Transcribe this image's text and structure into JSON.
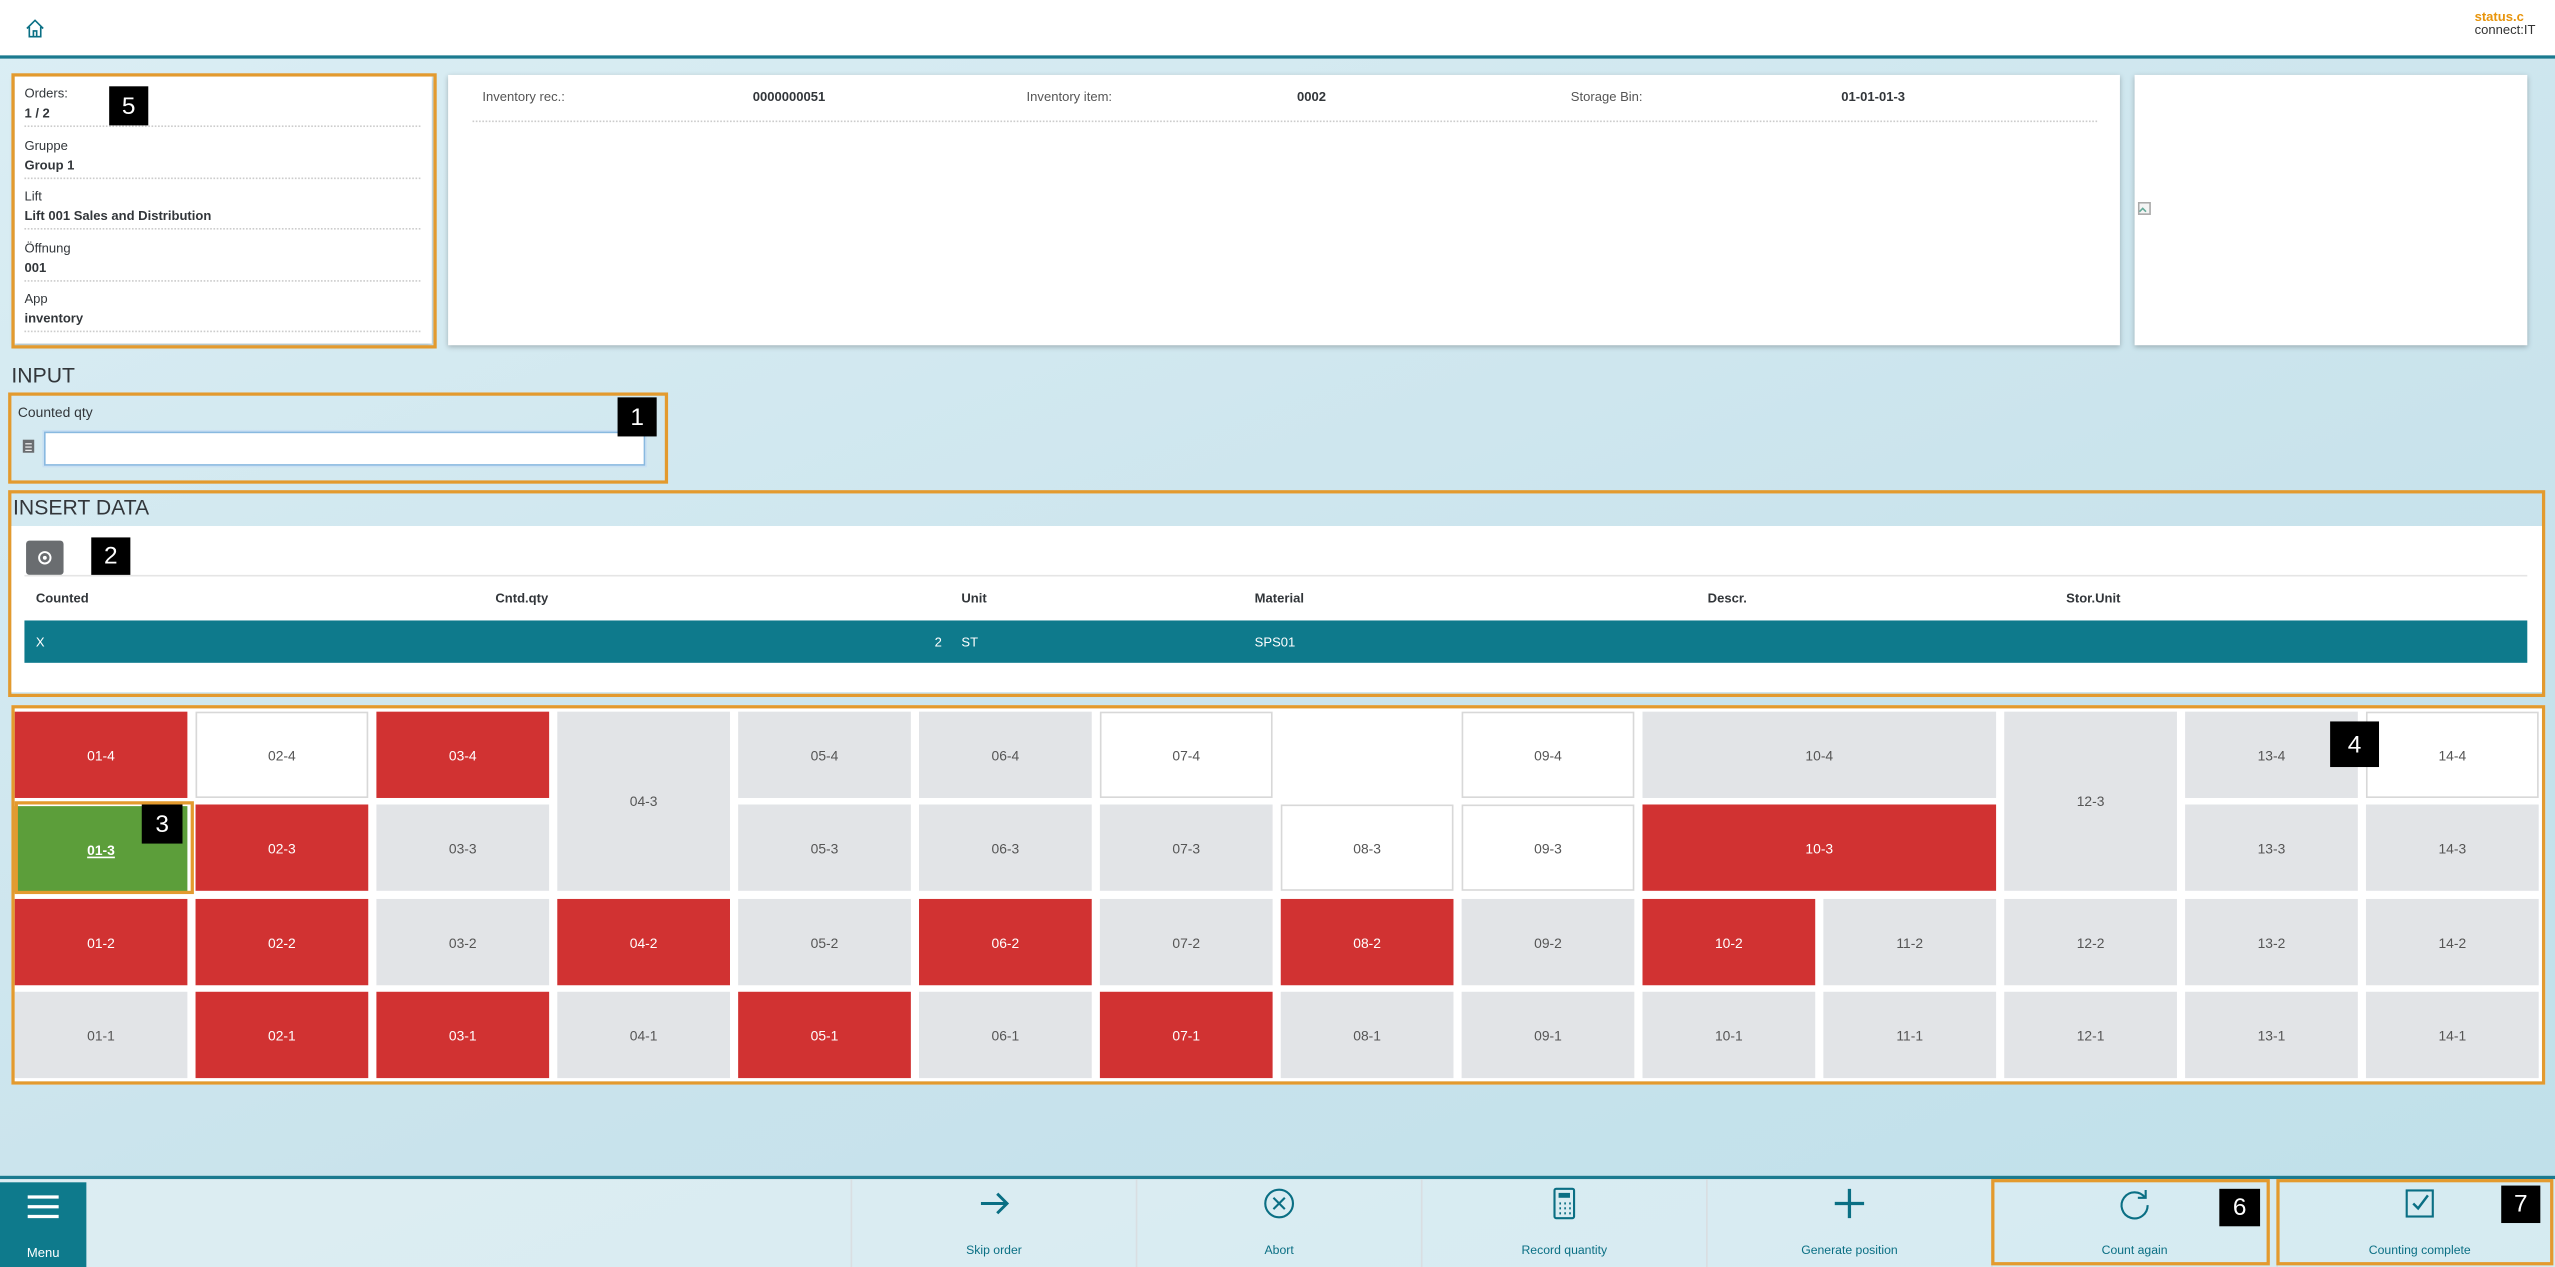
{
  "header": {
    "logo_top": "status.c",
    "logo_bottom": "connect:IT"
  },
  "info": {
    "fields": [
      {
        "label": "Orders:",
        "value": "1 / 2"
      },
      {
        "label": "Gruppe",
        "value": "Group 1"
      },
      {
        "label": "Lift",
        "value": "Lift 001 Sales and Distribution"
      },
      {
        "label": "Öffnung",
        "value": "001"
      },
      {
        "label": "App",
        "value": "inventory"
      }
    ]
  },
  "document": {
    "fields": [
      {
        "label": "Inventory rec.:",
        "value": "0000000051"
      },
      {
        "label": "Inventory item:",
        "value": "0002"
      },
      {
        "label": "Storage Bin:",
        "value": "01-01-01-3"
      }
    ]
  },
  "input": {
    "section_title": "INPUT",
    "field_label": "Counted qty"
  },
  "insert_data": {
    "section_title": "INSERT DATA",
    "table": {
      "columns": [
        "Counted",
        "Cntd.qty",
        "Unit",
        "Material",
        "Descr.",
        "Stor.Unit"
      ],
      "rows": [
        [
          "X",
          2,
          "ST",
          "SPS01",
          null,
          null
        ]
      ]
    }
  },
  "bin_grid": {
    "cells": [
      {
        "label": "01-4",
        "color": "#d13232"
      },
      {
        "label": "02-4",
        "color": "#ffffff"
      },
      {
        "label": "03-4",
        "color": "#d13232"
      },
      {
        "label": "04-3",
        "color": "#e2e4e7"
      },
      {
        "label": "05-4",
        "color": "#e2e4e7"
      },
      {
        "label": "06-4",
        "color": "#e2e4e7"
      },
      {
        "label": "07-4",
        "color": "#ffffff"
      },
      {
        "label": "09-4",
        "color": "#ffffff"
      },
      {
        "label": "10-4",
        "color": "#e2e4e7"
      },
      {
        "label": "12-3",
        "color": "#e2e4e7"
      },
      {
        "label": "13-4",
        "color": "#e2e4e7"
      },
      {
        "label": "14-4",
        "color": "#ffffff"
      },
      {
        "label": "01-3",
        "color": "#5c9e3a",
        "selected": true
      },
      {
        "label": "02-3",
        "color": "#d13232"
      },
      {
        "label": "03-3",
        "color": "#e2e4e7"
      },
      {
        "label": "05-3",
        "color": "#e2e4e7"
      },
      {
        "label": "06-3",
        "color": "#e2e4e7"
      },
      {
        "label": "07-3",
        "color": "#e2e4e7"
      },
      {
        "label": "08-3",
        "color": "#ffffff"
      },
      {
        "label": "09-3",
        "color": "#ffffff"
      },
      {
        "label": "10-3",
        "color": "#d13232"
      },
      {
        "label": "13-3",
        "color": "#e2e4e7"
      },
      {
        "label": "14-3",
        "color": "#e2e4e7"
      },
      {
        "label": "01-2",
        "color": "#d13232"
      },
      {
        "label": "02-2",
        "color": "#d13232"
      },
      {
        "label": "03-2",
        "color": "#e2e4e7"
      },
      {
        "label": "04-2",
        "color": "#d13232"
      },
      {
        "label": "05-2",
        "color": "#e2e4e7"
      },
      {
        "label": "06-2",
        "color": "#d13232"
      },
      {
        "label": "07-2",
        "color": "#e2e4e7"
      },
      {
        "label": "08-2",
        "color": "#d13232"
      },
      {
        "label": "09-2",
        "color": "#e2e4e7"
      },
      {
        "label": "10-2",
        "color": "#d13232"
      },
      {
        "label": "11-2",
        "color": "#e2e4e7"
      },
      {
        "label": "12-2",
        "color": "#e2e4e7"
      },
      {
        "label": "13-2",
        "color": "#e2e4e7"
      },
      {
        "label": "14-2",
        "color": "#e2e4e7"
      },
      {
        "label": "01-1",
        "color": "#e2e4e7"
      },
      {
        "label": "02-1",
        "color": "#d13232"
      },
      {
        "label": "03-1",
        "color": "#d13232"
      },
      {
        "label": "04-1",
        "color": "#e2e4e7"
      },
      {
        "label": "05-1",
        "color": "#d13232"
      },
      {
        "label": "06-1",
        "color": "#e2e4e7"
      },
      {
        "label": "07-1",
        "color": "#d13232"
      },
      {
        "label": "08-1",
        "color": "#e2e4e7"
      },
      {
        "label": "09-1",
        "color": "#e2e4e7"
      },
      {
        "label": "10-1",
        "color": "#e2e4e7"
      },
      {
        "label": "11-1",
        "color": "#e2e4e7"
      },
      {
        "label": "12-1",
        "color": "#e2e4e7"
      },
      {
        "label": "13-1",
        "color": "#e2e4e7"
      },
      {
        "label": "14-1",
        "color": "#e2e4e7"
      }
    ]
  },
  "callouts": [
    "1",
    "2",
    "3",
    "4",
    "5",
    "6",
    "7"
  ],
  "footer": {
    "menu": "Menu",
    "actions": [
      "Skip order",
      "Abort",
      "Record quantity",
      "Generate position",
      "Count again",
      "Counting complete"
    ]
  }
}
